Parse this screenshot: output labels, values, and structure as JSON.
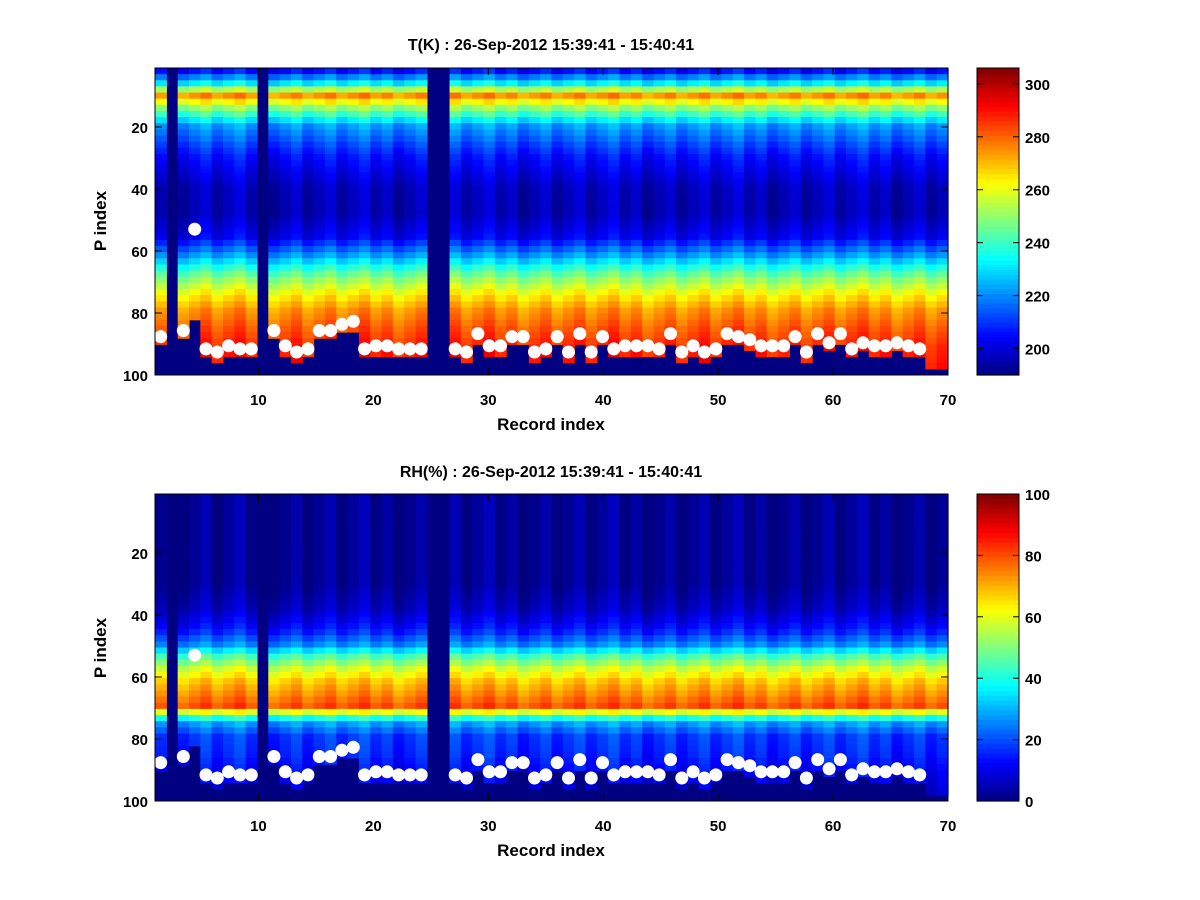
{
  "chart_data": [
    {
      "type": "heatmap",
      "title": "T(K) : 26-Sep-2012 15:39:41 - 15:40:41",
      "xlabel": "Record index",
      "ylabel": "P index",
      "xlim": [
        1,
        70
      ],
      "ylim": [
        1,
        100
      ],
      "y_reversed": true,
      "xticks": [
        10,
        20,
        30,
        40,
        50,
        60,
        70
      ],
      "yticks": [
        20,
        40,
        60,
        80,
        100
      ],
      "colorbar": {
        "range": [
          190,
          306
        ],
        "ticks": [
          200,
          220,
          240,
          260,
          280,
          300
        ],
        "colormap": "jet"
      },
      "field_profile": [
        [
          1,
          200
        ],
        [
          6,
          232
        ],
        [
          10,
          275
        ],
        [
          14,
          250
        ],
        [
          20,
          222
        ],
        [
          30,
          206
        ],
        [
          40,
          197
        ],
        [
          48,
          196
        ],
        [
          56,
          203
        ],
        [
          62,
          222
        ],
        [
          68,
          245
        ],
        [
          74,
          262
        ],
        [
          80,
          275
        ],
        [
          86,
          282
        ],
        [
          92,
          288
        ],
        [
          96,
          290
        ],
        [
          100,
          292
        ]
      ],
      "missing_records": [
        2,
        10,
        25,
        26
      ],
      "markers": [
        [
          1,
          88
        ],
        [
          3,
          86
        ],
        [
          4,
          53
        ],
        [
          5,
          92
        ],
        [
          6,
          93
        ],
        [
          7,
          91
        ],
        [
          8,
          92
        ],
        [
          9,
          92
        ],
        [
          11,
          86
        ],
        [
          12,
          91
        ],
        [
          13,
          93
        ],
        [
          14,
          92
        ],
        [
          15,
          86
        ],
        [
          16,
          86
        ],
        [
          17,
          84
        ],
        [
          18,
          83
        ],
        [
          19,
          92
        ],
        [
          20,
          91
        ],
        [
          21,
          91
        ],
        [
          22,
          92
        ],
        [
          23,
          92
        ],
        [
          24,
          92
        ],
        [
          27,
          92
        ],
        [
          28,
          93
        ],
        [
          29,
          87
        ],
        [
          30,
          91
        ],
        [
          31,
          91
        ],
        [
          32,
          88
        ],
        [
          33,
          88
        ],
        [
          34,
          93
        ],
        [
          35,
          92
        ],
        [
          36,
          88
        ],
        [
          37,
          93
        ],
        [
          38,
          87
        ],
        [
          39,
          93
        ],
        [
          40,
          88
        ],
        [
          41,
          92
        ],
        [
          42,
          91
        ],
        [
          43,
          91
        ],
        [
          44,
          91
        ],
        [
          45,
          92
        ],
        [
          46,
          87
        ],
        [
          47,
          93
        ],
        [
          48,
          91
        ],
        [
          49,
          93
        ],
        [
          50,
          92
        ],
        [
          51,
          87
        ],
        [
          52,
          88
        ],
        [
          53,
          89
        ],
        [
          54,
          91
        ],
        [
          55,
          91
        ],
        [
          56,
          91
        ],
        [
          57,
          88
        ],
        [
          58,
          93
        ],
        [
          59,
          87
        ],
        [
          60,
          90
        ],
        [
          61,
          87
        ],
        [
          62,
          92
        ],
        [
          63,
          90
        ],
        [
          64,
          91
        ],
        [
          65,
          91
        ],
        [
          66,
          90
        ],
        [
          67,
          91
        ],
        [
          68,
          92
        ]
      ]
    },
    {
      "type": "heatmap",
      "title": "RH(%) : 26-Sep-2012 15:39:41 - 15:40:41",
      "xlabel": "Record index",
      "ylabel": "P index",
      "xlim": [
        1,
        70
      ],
      "ylim": [
        1,
        100
      ],
      "y_reversed": true,
      "xticks": [
        10,
        20,
        30,
        40,
        50,
        60,
        70
      ],
      "yticks": [
        20,
        40,
        60,
        80,
        100
      ],
      "colorbar": {
        "range": [
          0,
          100
        ],
        "ticks": [
          0,
          20,
          40,
          60,
          80,
          100
        ],
        "colormap": "jet"
      },
      "field_profile": [
        [
          1,
          2
        ],
        [
          30,
          2
        ],
        [
          38,
          6
        ],
        [
          45,
          14
        ],
        [
          50,
          26
        ],
        [
          54,
          45
        ],
        [
          58,
          58
        ],
        [
          62,
          68
        ],
        [
          66,
          74
        ],
        [
          70,
          80
        ],
        [
          72,
          60
        ],
        [
          75,
          30
        ],
        [
          80,
          18
        ],
        [
          86,
          16
        ],
        [
          92,
          12
        ],
        [
          100,
          8
        ]
      ],
      "missing_records": [
        2,
        10,
        25,
        26
      ],
      "markers": [
        [
          1,
          88
        ],
        [
          3,
          86
        ],
        [
          4,
          53
        ],
        [
          5,
          92
        ],
        [
          6,
          93
        ],
        [
          7,
          91
        ],
        [
          8,
          92
        ],
        [
          9,
          92
        ],
        [
          11,
          86
        ],
        [
          12,
          91
        ],
        [
          13,
          93
        ],
        [
          14,
          92
        ],
        [
          15,
          86
        ],
        [
          16,
          86
        ],
        [
          17,
          84
        ],
        [
          18,
          83
        ],
        [
          19,
          92
        ],
        [
          20,
          91
        ],
        [
          21,
          91
        ],
        [
          22,
          92
        ],
        [
          23,
          92
        ],
        [
          24,
          92
        ],
        [
          27,
          92
        ],
        [
          28,
          93
        ],
        [
          29,
          87
        ],
        [
          30,
          91
        ],
        [
          31,
          91
        ],
        [
          32,
          88
        ],
        [
          33,
          88
        ],
        [
          34,
          93
        ],
        [
          35,
          92
        ],
        [
          36,
          88
        ],
        [
          37,
          93
        ],
        [
          38,
          87
        ],
        [
          39,
          93
        ],
        [
          40,
          88
        ],
        [
          41,
          92
        ],
        [
          42,
          91
        ],
        [
          43,
          91
        ],
        [
          44,
          91
        ],
        [
          45,
          92
        ],
        [
          46,
          87
        ],
        [
          47,
          93
        ],
        [
          48,
          91
        ],
        [
          49,
          93
        ],
        [
          50,
          92
        ],
        [
          51,
          87
        ],
        [
          52,
          88
        ],
        [
          53,
          89
        ],
        [
          54,
          91
        ],
        [
          55,
          91
        ],
        [
          56,
          91
        ],
        [
          57,
          88
        ],
        [
          58,
          93
        ],
        [
          59,
          87
        ],
        [
          60,
          90
        ],
        [
          61,
          87
        ],
        [
          62,
          92
        ],
        [
          63,
          90
        ],
        [
          64,
          91
        ],
        [
          65,
          91
        ],
        [
          66,
          90
        ],
        [
          67,
          91
        ],
        [
          68,
          92
        ]
      ]
    }
  ]
}
